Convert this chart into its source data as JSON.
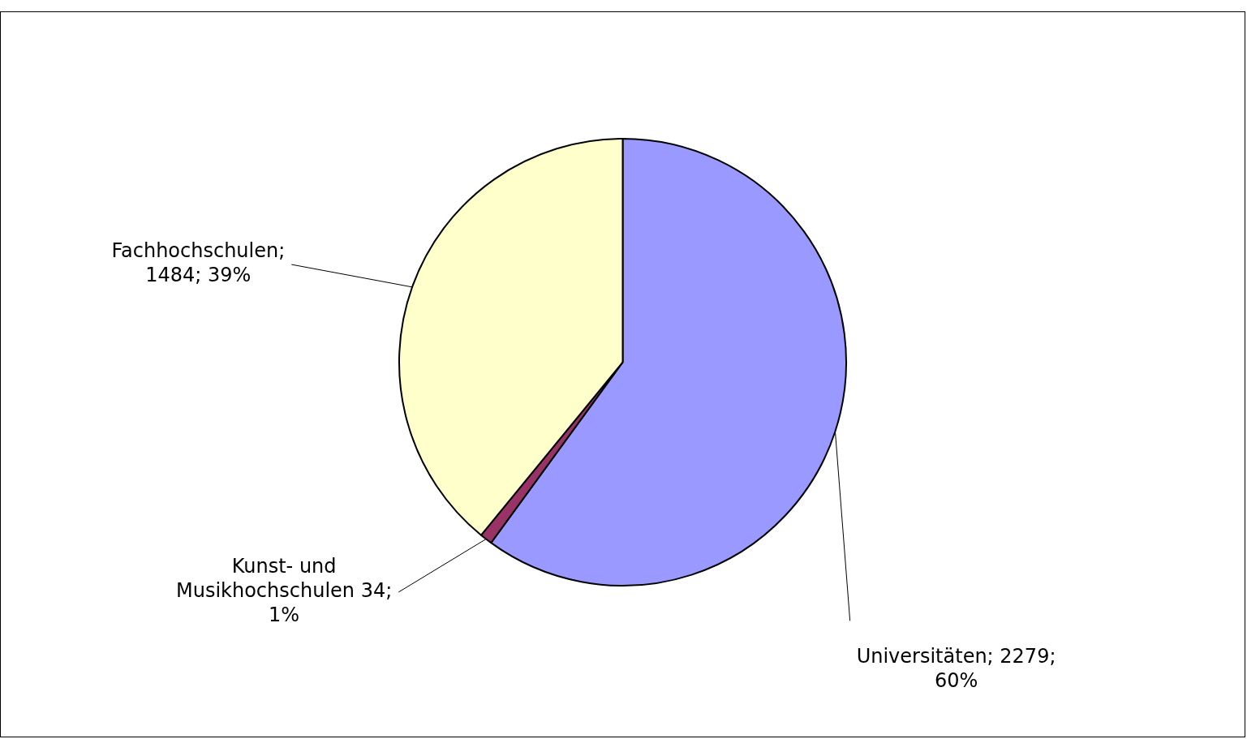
{
  "chart_data": {
    "type": "pie",
    "categories": [
      "Universitäten",
      "Kunst- und Musikhochschulen",
      "Fachhochschulen"
    ],
    "values": [
      2279,
      34,
      1484
    ],
    "colors": [
      "#9999ff",
      "#993366",
      "#ffffcc"
    ],
    "value_labels": [
      "; 2279; 60%",
      " 34; 1%",
      "; 1484; 39%"
    ],
    "legend": false
  }
}
